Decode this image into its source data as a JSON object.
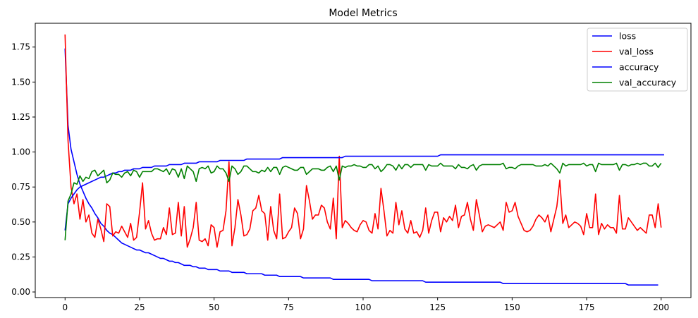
{
  "chart_data": {
    "type": "line",
    "title": "Model Metrics",
    "xlabel": "",
    "ylabel": "",
    "xlim": [
      -10,
      210
    ],
    "ylim": [
      -0.04,
      1.92
    ],
    "x_ticks": [
      0,
      25,
      50,
      75,
      100,
      125,
      150,
      175,
      200
    ],
    "y_ticks": [
      0.0,
      0.25,
      0.5,
      0.75,
      1.0,
      1.25,
      1.5,
      1.75
    ],
    "y_tick_labels": [
      "0.00",
      "0.25",
      "0.50",
      "0.75",
      "1.00",
      "1.25",
      "1.50",
      "1.75"
    ],
    "grid": false,
    "legend_position": "top-right",
    "epochs": 200,
    "series": [
      {
        "name": "loss",
        "color": "#0000ff",
        "values": [
          1.74,
          1.19,
          1.02,
          0.93,
          0.84,
          0.77,
          0.72,
          0.67,
          0.63,
          0.6,
          0.56,
          0.53,
          0.49,
          0.47,
          0.44,
          0.42,
          0.41,
          0.39,
          0.37,
          0.35,
          0.34,
          0.33,
          0.32,
          0.31,
          0.3,
          0.3,
          0.29,
          0.28,
          0.28,
          0.27,
          0.26,
          0.25,
          0.24,
          0.24,
          0.23,
          0.22,
          0.22,
          0.21,
          0.21,
          0.2,
          0.19,
          0.19,
          0.19,
          0.18,
          0.18,
          0.17,
          0.17,
          0.17,
          0.16,
          0.16,
          0.16,
          0.16,
          0.15,
          0.15,
          0.15,
          0.15,
          0.14,
          0.14,
          0.14,
          0.14,
          0.14,
          0.13,
          0.13,
          0.13,
          0.13,
          0.13,
          0.13,
          0.12,
          0.12,
          0.12,
          0.12,
          0.12,
          0.11,
          0.11,
          0.11,
          0.11,
          0.11,
          0.11,
          0.11,
          0.11,
          0.1,
          0.1,
          0.1,
          0.1,
          0.1,
          0.1,
          0.1,
          0.1,
          0.1,
          0.1,
          0.09,
          0.09,
          0.09,
          0.09,
          0.09,
          0.09,
          0.09,
          0.09,
          0.09,
          0.09,
          0.09,
          0.09,
          0.09,
          0.08,
          0.08,
          0.08,
          0.08,
          0.08,
          0.08,
          0.08,
          0.08,
          0.08,
          0.08,
          0.08,
          0.08,
          0.08,
          0.08,
          0.08,
          0.08,
          0.08,
          0.08,
          0.07,
          0.07,
          0.07,
          0.07,
          0.07,
          0.07,
          0.07,
          0.07,
          0.07,
          0.07,
          0.07,
          0.07,
          0.07,
          0.07,
          0.07,
          0.07,
          0.07,
          0.07,
          0.07,
          0.07,
          0.07,
          0.07,
          0.07,
          0.07,
          0.07,
          0.07,
          0.06,
          0.06,
          0.06,
          0.06,
          0.06,
          0.06,
          0.06,
          0.06,
          0.06,
          0.06,
          0.06,
          0.06,
          0.06,
          0.06,
          0.06,
          0.06,
          0.06,
          0.06,
          0.06,
          0.06,
          0.06,
          0.06,
          0.06,
          0.06,
          0.06,
          0.06,
          0.06,
          0.06,
          0.06,
          0.06,
          0.06,
          0.06,
          0.06,
          0.06,
          0.06,
          0.06,
          0.06,
          0.06,
          0.06,
          0.06,
          0.06,
          0.06,
          0.05,
          0.05,
          0.05,
          0.05,
          0.05,
          0.05,
          0.05,
          0.05,
          0.05,
          0.05,
          0.05
        ]
      },
      {
        "name": "val_loss",
        "color": "#ff0000",
        "values": [
          1.84,
          1.08,
          0.75,
          0.63,
          0.7,
          0.52,
          0.66,
          0.5,
          0.55,
          0.42,
          0.39,
          0.52,
          0.45,
          0.36,
          0.63,
          0.61,
          0.4,
          0.43,
          0.42,
          0.47,
          0.43,
          0.39,
          0.49,
          0.37,
          0.39,
          0.57,
          0.78,
          0.45,
          0.51,
          0.42,
          0.37,
          0.38,
          0.38,
          0.46,
          0.41,
          0.6,
          0.41,
          0.42,
          0.64,
          0.4,
          0.61,
          0.32,
          0.38,
          0.46,
          0.64,
          0.37,
          0.36,
          0.38,
          0.33,
          0.48,
          0.46,
          0.32,
          0.43,
          0.44,
          0.58,
          0.93,
          0.33,
          0.46,
          0.66,
          0.55,
          0.4,
          0.41,
          0.45,
          0.58,
          0.6,
          0.69,
          0.58,
          0.56,
          0.37,
          0.61,
          0.44,
          0.38,
          0.7,
          0.38,
          0.39,
          0.43,
          0.46,
          0.6,
          0.56,
          0.38,
          0.45,
          0.76,
          0.65,
          0.52,
          0.55,
          0.55,
          0.62,
          0.6,
          0.5,
          0.45,
          0.67,
          0.38,
          0.97,
          0.46,
          0.51,
          0.49,
          0.46,
          0.44,
          0.43,
          0.48,
          0.51,
          0.5,
          0.44,
          0.42,
          0.56,
          0.45,
          0.74,
          0.58,
          0.4,
          0.44,
          0.42,
          0.64,
          0.48,
          0.58,
          0.45,
          0.42,
          0.51,
          0.42,
          0.43,
          0.39,
          0.44,
          0.6,
          0.42,
          0.51,
          0.57,
          0.57,
          0.43,
          0.53,
          0.5,
          0.54,
          0.51,
          0.62,
          0.46,
          0.54,
          0.55,
          0.64,
          0.52,
          0.44,
          0.66,
          0.55,
          0.43,
          0.47,
          0.48,
          0.47,
          0.46,
          0.48,
          0.5,
          0.44,
          0.64,
          0.57,
          0.58,
          0.64,
          0.54,
          0.49,
          0.44,
          0.43,
          0.44,
          0.47,
          0.52,
          0.55,
          0.53,
          0.5,
          0.55,
          0.43,
          0.52,
          0.61,
          0.8,
          0.49,
          0.55,
          0.46,
          0.48,
          0.5,
          0.49,
          0.47,
          0.41,
          0.56,
          0.46,
          0.46,
          0.7,
          0.41,
          0.49,
          0.45,
          0.48,
          0.46,
          0.46,
          0.42,
          0.69,
          0.45,
          0.45,
          0.53,
          0.5,
          0.47,
          0.44,
          0.46,
          0.44,
          0.42,
          0.55,
          0.55,
          0.46,
          0.63,
          0.46
        ]
      },
      {
        "name": "accuracy",
        "color": "#0000ff",
        "values": [
          0.44,
          0.63,
          0.67,
          0.7,
          0.73,
          0.75,
          0.76,
          0.77,
          0.78,
          0.79,
          0.8,
          0.81,
          0.82,
          0.82,
          0.83,
          0.84,
          0.85,
          0.85,
          0.86,
          0.86,
          0.87,
          0.87,
          0.87,
          0.88,
          0.88,
          0.88,
          0.89,
          0.89,
          0.89,
          0.89,
          0.9,
          0.9,
          0.9,
          0.9,
          0.9,
          0.91,
          0.91,
          0.91,
          0.91,
          0.91,
          0.92,
          0.92,
          0.92,
          0.92,
          0.92,
          0.93,
          0.93,
          0.93,
          0.93,
          0.93,
          0.93,
          0.93,
          0.94,
          0.94,
          0.94,
          0.94,
          0.94,
          0.94,
          0.94,
          0.94,
          0.94,
          0.95,
          0.95,
          0.95,
          0.95,
          0.95,
          0.95,
          0.95,
          0.95,
          0.95,
          0.95,
          0.95,
          0.95,
          0.96,
          0.96,
          0.96,
          0.96,
          0.96,
          0.96,
          0.96,
          0.96,
          0.96,
          0.96,
          0.96,
          0.96,
          0.96,
          0.96,
          0.96,
          0.96,
          0.96,
          0.96,
          0.96,
          0.96,
          0.96,
          0.97,
          0.97,
          0.97,
          0.97,
          0.97,
          0.97,
          0.97,
          0.97,
          0.97,
          0.97,
          0.97,
          0.97,
          0.97,
          0.97,
          0.97,
          0.97,
          0.97,
          0.97,
          0.97,
          0.97,
          0.97,
          0.97,
          0.97,
          0.97,
          0.97,
          0.97,
          0.97,
          0.97,
          0.97,
          0.97,
          0.97,
          0.97,
          0.98,
          0.98,
          0.98,
          0.98,
          0.98,
          0.98,
          0.98,
          0.98,
          0.98,
          0.98,
          0.98,
          0.98,
          0.98,
          0.98,
          0.98,
          0.98,
          0.98,
          0.98,
          0.98,
          0.98,
          0.98,
          0.98,
          0.98,
          0.98,
          0.98,
          0.98,
          0.98,
          0.98,
          0.98,
          0.98,
          0.98,
          0.98,
          0.98,
          0.98,
          0.98,
          0.98,
          0.98,
          0.98,
          0.98,
          0.98,
          0.98,
          0.98,
          0.98,
          0.98,
          0.98,
          0.98,
          0.98,
          0.98,
          0.98,
          0.98,
          0.98,
          0.98,
          0.98,
          0.98,
          0.98,
          0.98,
          0.98,
          0.98,
          0.98,
          0.98,
          0.98,
          0.98,
          0.98,
          0.98,
          0.98,
          0.98,
          0.98,
          0.98,
          0.98,
          0.98,
          0.98,
          0.98,
          0.98,
          0.98,
          0.98,
          0.98
        ]
      },
      {
        "name": "val_accuracy",
        "color": "#008000",
        "values": [
          0.37,
          0.65,
          0.7,
          0.78,
          0.77,
          0.83,
          0.79,
          0.82,
          0.81,
          0.86,
          0.87,
          0.83,
          0.85,
          0.87,
          0.78,
          0.8,
          0.85,
          0.84,
          0.84,
          0.82,
          0.85,
          0.86,
          0.83,
          0.87,
          0.86,
          0.82,
          0.86,
          0.86,
          0.86,
          0.86,
          0.88,
          0.88,
          0.87,
          0.86,
          0.88,
          0.84,
          0.88,
          0.87,
          0.82,
          0.88,
          0.81,
          0.9,
          0.88,
          0.86,
          0.79,
          0.88,
          0.89,
          0.88,
          0.9,
          0.85,
          0.86,
          0.9,
          0.88,
          0.88,
          0.85,
          0.79,
          0.9,
          0.88,
          0.84,
          0.86,
          0.9,
          0.9,
          0.88,
          0.86,
          0.86,
          0.85,
          0.87,
          0.86,
          0.89,
          0.86,
          0.89,
          0.89,
          0.84,
          0.89,
          0.9,
          0.89,
          0.88,
          0.87,
          0.87,
          0.89,
          0.89,
          0.84,
          0.86,
          0.88,
          0.88,
          0.88,
          0.87,
          0.87,
          0.89,
          0.9,
          0.86,
          0.9,
          0.8,
          0.9,
          0.89,
          0.9,
          0.9,
          0.91,
          0.9,
          0.9,
          0.89,
          0.89,
          0.91,
          0.91,
          0.88,
          0.9,
          0.86,
          0.88,
          0.91,
          0.91,
          0.9,
          0.87,
          0.91,
          0.88,
          0.91,
          0.91,
          0.89,
          0.91,
          0.91,
          0.91,
          0.91,
          0.87,
          0.91,
          0.9,
          0.9,
          0.9,
          0.92,
          0.9,
          0.9,
          0.9,
          0.9,
          0.88,
          0.91,
          0.89,
          0.89,
          0.88,
          0.9,
          0.91,
          0.87,
          0.9,
          0.91,
          0.91,
          0.91,
          0.91,
          0.91,
          0.91,
          0.91,
          0.92,
          0.88,
          0.89,
          0.89,
          0.88,
          0.9,
          0.91,
          0.91,
          0.91,
          0.91,
          0.91,
          0.9,
          0.9,
          0.9,
          0.91,
          0.9,
          0.92,
          0.9,
          0.88,
          0.85,
          0.92,
          0.9,
          0.91,
          0.91,
          0.91,
          0.91,
          0.91,
          0.92,
          0.9,
          0.91,
          0.91,
          0.86,
          0.92,
          0.91,
          0.91,
          0.91,
          0.91,
          0.91,
          0.92,
          0.87,
          0.91,
          0.91,
          0.9,
          0.91,
          0.91,
          0.92,
          0.91,
          0.92,
          0.92,
          0.9,
          0.9,
          0.92,
          0.89,
          0.92
        ]
      }
    ]
  }
}
